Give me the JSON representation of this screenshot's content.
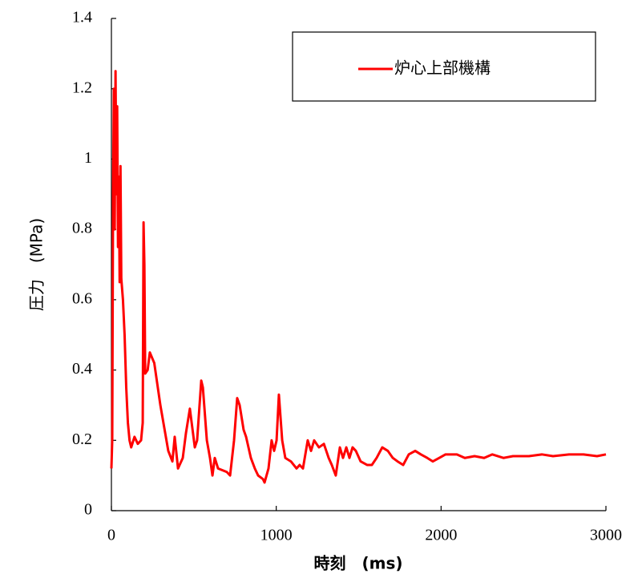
{
  "chart_data": {
    "type": "line",
    "x_label": "時刻　(ms)",
    "y_label": "圧力　(MPa)",
    "x": [
      0,
      5,
      10,
      15,
      20,
      25,
      30,
      35,
      40,
      45,
      50,
      55,
      60,
      70,
      80,
      90,
      100,
      110,
      120,
      140,
      160,
      180,
      190,
      195,
      200,
      205,
      220,
      233,
      260,
      297,
      345,
      370,
      384,
      404,
      433,
      452,
      476,
      506,
      520,
      545,
      555,
      579,
      598,
      613,
      627,
      647,
      700,
      720,
      744,
      763,
      778,
      802,
      817,
      846,
      870,
      890,
      919,
      929,
      953,
      972,
      987,
      1002,
      1016,
      1036,
      1055,
      1089,
      1123,
      1142,
      1162,
      1191,
      1211,
      1230,
      1259,
      1289,
      1318,
      1337,
      1361,
      1386,
      1405,
      1425,
      1444,
      1463,
      1483,
      1512,
      1551,
      1580,
      1609,
      1643,
      1677,
      1707,
      1736,
      1770,
      1804,
      1843,
      1877,
      1916,
      1950,
      1989,
      2027,
      2096,
      2144,
      2203,
      2261,
      2310,
      2378,
      2436,
      2533,
      2611,
      2679,
      2776,
      2864,
      2946,
      3000
    ],
    "xlim": [
      0,
      3000
    ],
    "xticks": [
      0,
      1000,
      2000,
      3000
    ],
    "ylim": [
      0,
      1.4
    ],
    "yticks": [
      0,
      0.2,
      0.4,
      0.6,
      0.8,
      1,
      1.2,
      1.4
    ],
    "legend": "upper right",
    "series": [
      {
        "name": "炉心上部機構",
        "color": "#ff0000",
        "values": [
          0.12,
          0.2,
          0.9,
          1.2,
          0.8,
          1.25,
          0.9,
          1.15,
          0.75,
          0.95,
          0.65,
          0.98,
          0.66,
          0.6,
          0.5,
          0.35,
          0.25,
          0.2,
          0.18,
          0.21,
          0.19,
          0.2,
          0.25,
          0.82,
          0.7,
          0.39,
          0.4,
          0.45,
          0.42,
          0.3,
          0.17,
          0.14,
          0.21,
          0.12,
          0.15,
          0.22,
          0.29,
          0.18,
          0.2,
          0.37,
          0.35,
          0.2,
          0.15,
          0.1,
          0.15,
          0.12,
          0.11,
          0.1,
          0.2,
          0.32,
          0.3,
          0.23,
          0.21,
          0.15,
          0.12,
          0.1,
          0.09,
          0.08,
          0.12,
          0.2,
          0.17,
          0.2,
          0.33,
          0.2,
          0.15,
          0.14,
          0.12,
          0.13,
          0.12,
          0.2,
          0.17,
          0.2,
          0.18,
          0.19,
          0.15,
          0.13,
          0.1,
          0.18,
          0.15,
          0.18,
          0.15,
          0.18,
          0.17,
          0.14,
          0.13,
          0.13,
          0.15,
          0.18,
          0.17,
          0.15,
          0.14,
          0.13,
          0.16,
          0.17,
          0.16,
          0.15,
          0.14,
          0.15,
          0.16,
          0.16,
          0.15,
          0.155,
          0.15,
          0.16,
          0.15,
          0.155,
          0.155,
          0.16,
          0.155,
          0.16,
          0.16,
          0.155,
          0.16
        ]
      }
    ]
  }
}
